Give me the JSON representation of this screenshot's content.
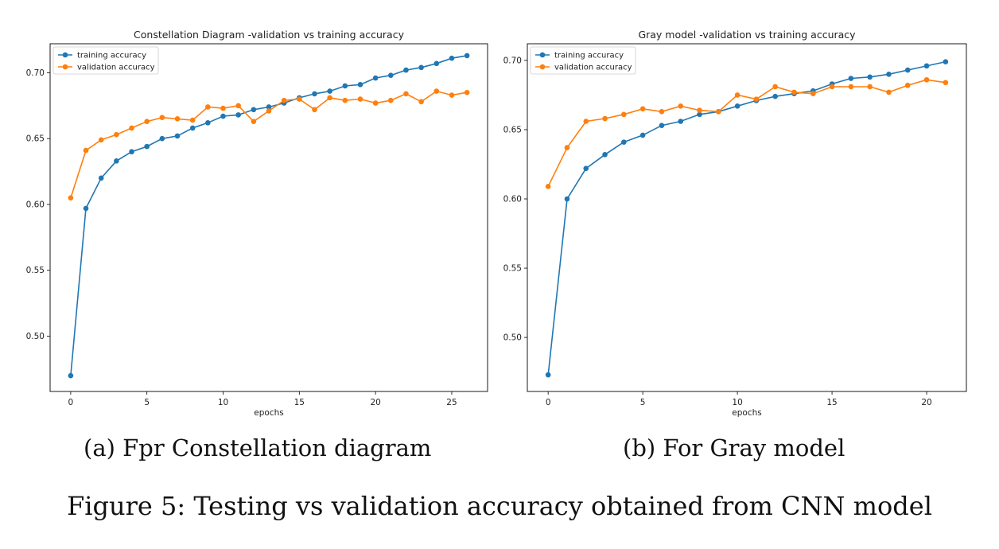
{
  "figure_caption": "Figure 5: Testing vs validation accuracy obtained from CNN model",
  "subcaptions": [
    "(a) Fpr Constellation diagram",
    "(b) For Gray model"
  ],
  "colors": {
    "training": "#1f77b4",
    "validation": "#ff7f0e"
  },
  "chart_data": [
    {
      "type": "line",
      "title": "Constellation Diagram -validation vs training accuracy",
      "xlabel": "epochs",
      "ylabel": "",
      "xlim": [
        -1.35,
        27.35
      ],
      "ylim": [
        0.458,
        0.722
      ],
      "xticks": [
        0,
        5,
        10,
        15,
        20,
        25
      ],
      "yticks": [
        0.5,
        0.55,
        0.6,
        0.65,
        0.7
      ],
      "ytick_labels": [
        "0.50",
        "0.55",
        "0.60",
        "0.65",
        "0.70"
      ],
      "legend_position": "top-left",
      "grid": false,
      "x": [
        0,
        1,
        2,
        3,
        4,
        5,
        6,
        7,
        8,
        9,
        10,
        11,
        12,
        13,
        14,
        15,
        16,
        17,
        18,
        19,
        20,
        21,
        22,
        23,
        24,
        25,
        26
      ],
      "series": [
        {
          "name": "training accuracy",
          "values": [
            0.47,
            0.597,
            0.62,
            0.633,
            0.64,
            0.644,
            0.65,
            0.652,
            0.658,
            0.662,
            0.667,
            0.668,
            0.672,
            0.674,
            0.677,
            0.681,
            0.684,
            0.686,
            0.69,
            0.691,
            0.696,
            0.698,
            0.702,
            0.704,
            0.707,
            0.711,
            0.713
          ]
        },
        {
          "name": "validation accuracy",
          "values": [
            0.605,
            0.641,
            0.649,
            0.653,
            0.658,
            0.663,
            0.666,
            0.665,
            0.664,
            0.674,
            0.673,
            0.675,
            0.663,
            0.671,
            0.679,
            0.68,
            0.672,
            0.681,
            0.679,
            0.68,
            0.677,
            0.679,
            0.684,
            0.678,
            0.686,
            0.683,
            0.685
          ]
        }
      ]
    },
    {
      "type": "line",
      "title": "Gray model -validation vs training accuracy",
      "xlabel": "epochs",
      "ylabel": "",
      "xlim": [
        -1.1,
        22.1
      ],
      "ylim": [
        0.461,
        0.712
      ],
      "xticks": [
        0,
        5,
        10,
        15,
        20
      ],
      "yticks": [
        0.5,
        0.55,
        0.6,
        0.65,
        0.7
      ],
      "ytick_labels": [
        "0.50",
        "0.55",
        "0.60",
        "0.65",
        "0.70"
      ],
      "legend_position": "top-left",
      "grid": false,
      "x": [
        0,
        1,
        2,
        3,
        4,
        5,
        6,
        7,
        8,
        9,
        10,
        11,
        12,
        13,
        14,
        15,
        16,
        17,
        18,
        19,
        20,
        21
      ],
      "series": [
        {
          "name": "training accuracy",
          "values": [
            0.473,
            0.6,
            0.622,
            0.632,
            0.641,
            0.646,
            0.653,
            0.656,
            0.661,
            0.663,
            0.667,
            0.671,
            0.674,
            0.676,
            0.678,
            0.683,
            0.687,
            0.688,
            0.69,
            0.693,
            0.696,
            0.699
          ]
        },
        {
          "name": "validation accuracy",
          "values": [
            0.609,
            0.637,
            0.656,
            0.658,
            0.661,
            0.665,
            0.663,
            0.667,
            0.664,
            0.663,
            0.675,
            0.672,
            0.681,
            0.677,
            0.676,
            0.681,
            0.681,
            0.681,
            0.677,
            0.682,
            0.686,
            0.684
          ]
        }
      ]
    }
  ]
}
